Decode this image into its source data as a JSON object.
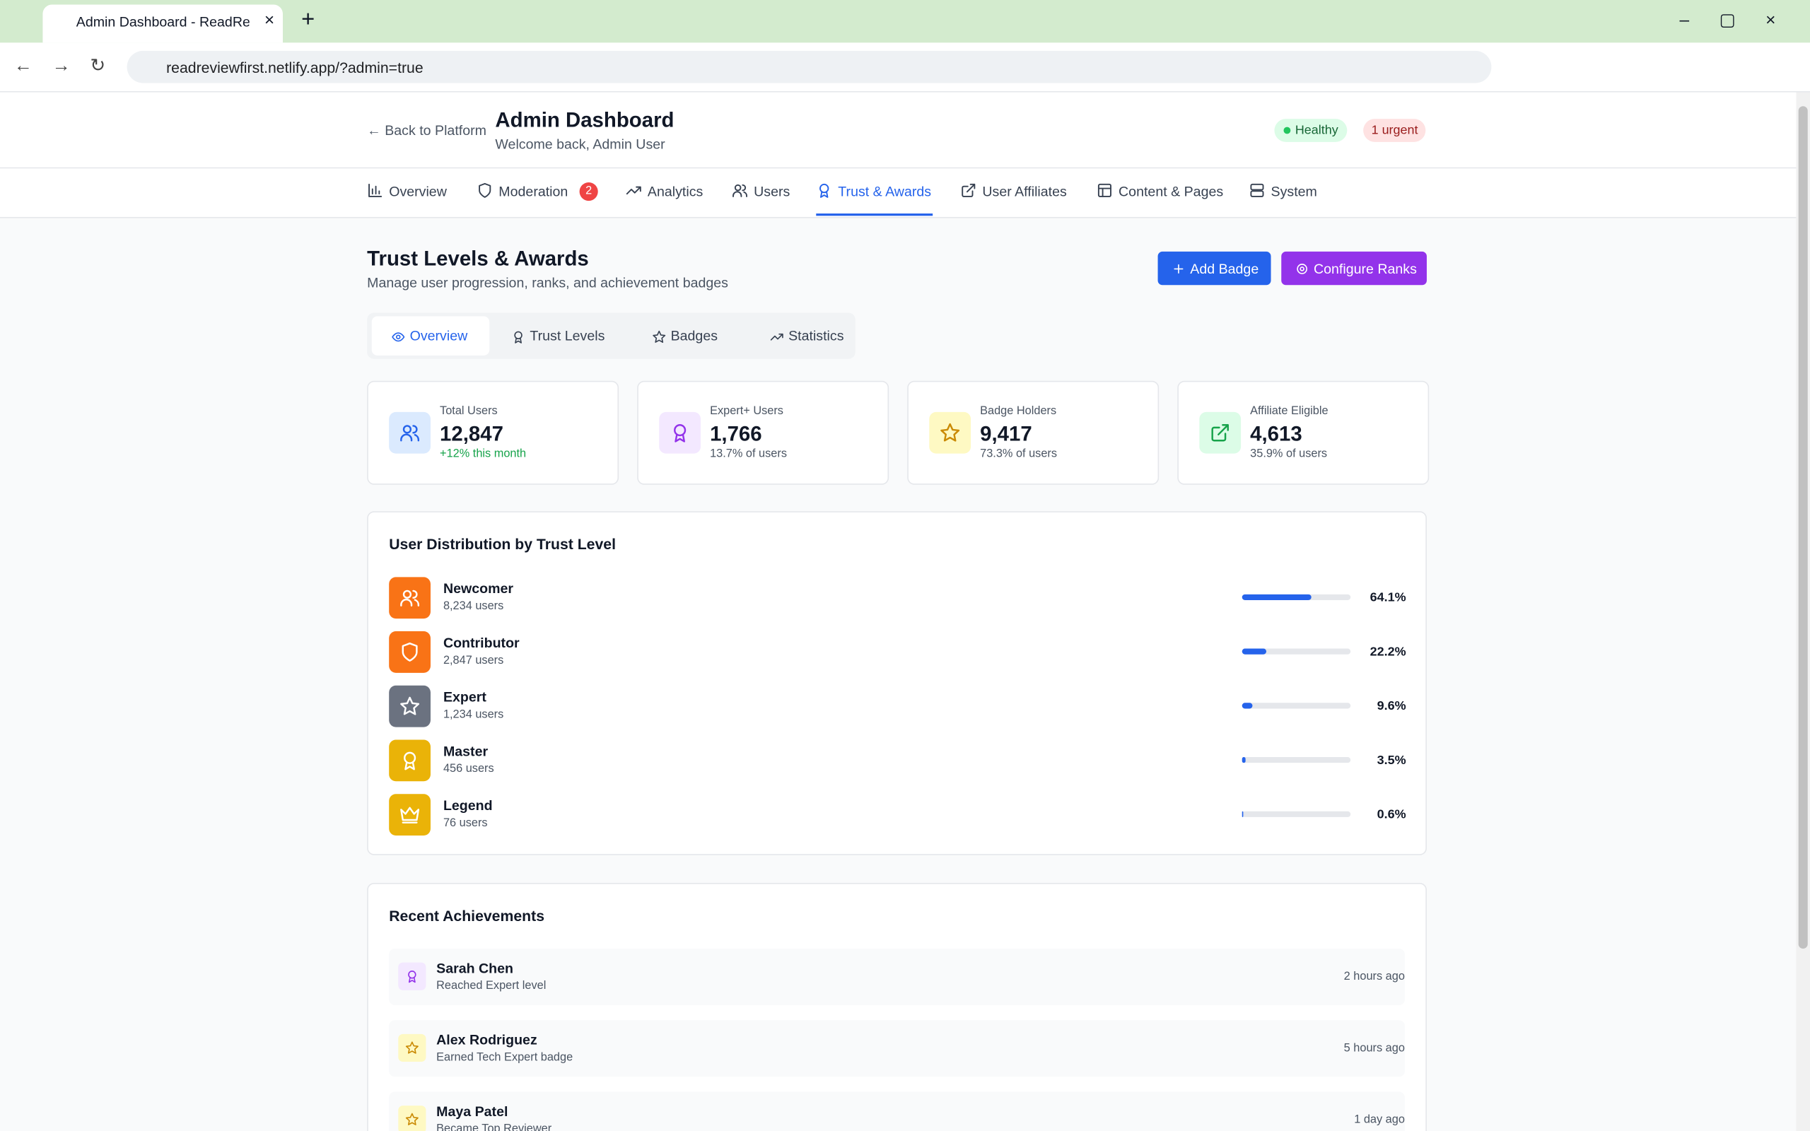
{
  "browser": {
    "tab_title": "Admin Dashboard - ReadReview",
    "url": "readreviewfirst.netlify.app/?admin=true"
  },
  "header": {
    "back": "← Back to Platform",
    "title": "Admin Dashboard",
    "subtitle": "Welcome back, Admin User",
    "status": "Healthy",
    "urgent": "1 urgent"
  },
  "nav": [
    {
      "label": "Overview"
    },
    {
      "label": "Moderation",
      "badge": 2
    },
    {
      "label": "Analytics"
    },
    {
      "label": "Users"
    },
    {
      "label": "Trust & Awards",
      "active": true
    },
    {
      "label": "User Affiliates"
    },
    {
      "label": "Content & Pages"
    },
    {
      "label": "System"
    }
  ],
  "page": {
    "title": "Trust Levels & Awards",
    "subtitle": "Manage user progression, ranks, and achievement badges",
    "buttons": [
      "Add Badge",
      "Configure Ranks"
    ],
    "tabs": [
      "Overview",
      "Trust Levels",
      "Badges",
      "Statistics"
    ]
  },
  "stats": [
    {
      "label": "Total Users",
      "value": "12,847",
      "note": "+12% this month"
    },
    {
      "label": "Expert+ Users",
      "value": "1,766",
      "note": "13.7% of users"
    },
    {
      "label": "Badge Holders",
      "value": "9,417",
      "note": "73.3% of users"
    },
    {
      "label": "Affiliate Eligible",
      "value": "4,613",
      "note": "35.9% of users"
    }
  ],
  "distribution": {
    "title": "User Distribution by Trust Level",
    "levels": [
      {
        "name": "Newcomer",
        "users": "8,234 users",
        "percent": {
          "value": 64.1,
          "label": "64.1%"
        }
      },
      {
        "name": "Contributor",
        "users": "2,847 users",
        "percent": {
          "value": 22.2,
          "label": "22.2%"
        }
      },
      {
        "name": "Expert",
        "users": "1,234 users",
        "percent": {
          "value": 9.6,
          "label": "9.6%"
        }
      },
      {
        "name": "Master",
        "users": "456 users",
        "percent": {
          "value": 3.5,
          "label": "3.5%"
        }
      },
      {
        "name": "Legend",
        "users": "76 users",
        "percent": {
          "value": 0.6,
          "label": "0.6%"
        }
      }
    ]
  },
  "achievements": {
    "title": "Recent Achievements",
    "items": [
      {
        "name": "Sarah Chen",
        "action": "Reached Expert level",
        "time": "2 hours ago"
      },
      {
        "name": "Alex Rodriguez",
        "action": "Earned Tech Expert badge",
        "time": "5 hours ago"
      },
      {
        "name": "Maya Patel",
        "action": "Became Top Reviewer",
        "time": "1 day ago"
      }
    ]
  }
}
